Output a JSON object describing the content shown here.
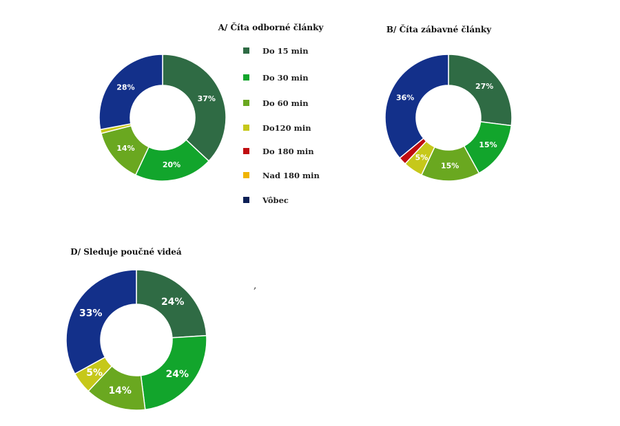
{
  "legend": {
    "items": [
      {
        "label": "Do 15 min",
        "color": "#2f6b44"
      },
      {
        "label": "Do 30 min",
        "color": "#12a52c"
      },
      {
        "label": "Do 60 min",
        "color": "#6aa820"
      },
      {
        "label": "Do120 min",
        "color": "#c6c81a"
      },
      {
        "label": "Do 180 min",
        "color": "#c00d10"
      },
      {
        "label": "Nad 180 min",
        "color": "#f0b400"
      },
      {
        "label": "Vôbec",
        "color": "#0b1f55"
      }
    ]
  },
  "stray_mark": ",",
  "chart_data": [
    {
      "type": "pie",
      "variant": "donut",
      "title": "A/ Číta odborné články",
      "categories": [
        "Do 15 min",
        "Do 30 min",
        "Do 60 min",
        "Do120 min",
        "Do 180 min",
        "Nad 180 min",
        "Vôbec"
      ],
      "values": [
        37,
        20,
        14,
        1,
        0,
        0,
        28
      ],
      "labels": [
        "37%",
        "20%",
        "14%",
        "",
        "",
        "",
        "28%"
      ],
      "colors": [
        "#2f6b44",
        "#12a52c",
        "#6aa820",
        "#c6c81a",
        "#c00d10",
        "#f0b400",
        "#13308a"
      ]
    },
    {
      "type": "pie",
      "variant": "donut",
      "title": "B/ Číta zábavné články",
      "categories": [
        "Do 15 min",
        "Do 30 min",
        "Do 60 min",
        "Do120 min",
        "Do 180 min",
        "Nad 180 min",
        "Vôbec"
      ],
      "values": [
        27,
        15,
        15,
        5,
        2,
        0,
        36
      ],
      "labels": [
        "27%",
        "15%",
        "15%",
        "5%",
        "",
        "",
        "36%"
      ],
      "colors": [
        "#2f6b44",
        "#12a52c",
        "#6aa820",
        "#c6c81a",
        "#c00d10",
        "#f0b400",
        "#13308a"
      ]
    },
    {
      "type": "pie",
      "variant": "donut",
      "title": "D/ Sleduje poučné videá",
      "categories": [
        "Do 15 min",
        "Do 30 min",
        "Do 60 min",
        "Do120 min",
        "Do 180 min",
        "Nad 180 min",
        "Vôbec"
      ],
      "values": [
        24,
        24,
        14,
        5,
        0,
        0,
        33
      ],
      "labels": [
        "24%",
        "24%",
        "14%",
        "5%",
        "",
        "",
        "33%"
      ],
      "colors": [
        "#2f6b44",
        "#12a52c",
        "#6aa820",
        "#c6c81a",
        "#c00d10",
        "#f0b400",
        "#13308a"
      ]
    }
  ]
}
